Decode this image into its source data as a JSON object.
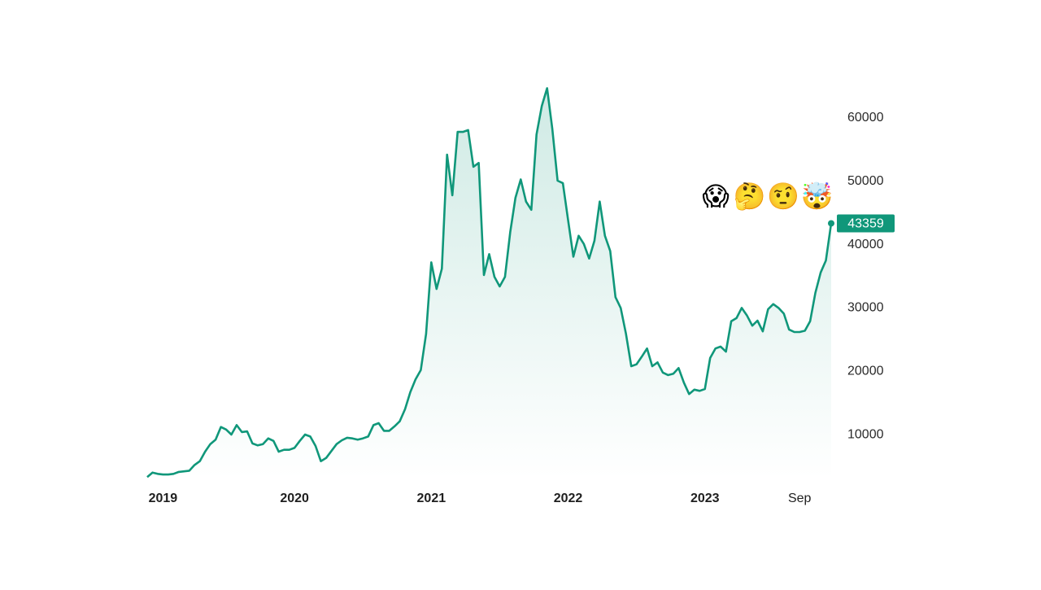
{
  "chart_data": {
    "type": "area-line",
    "categories": [
      null,
      null,
      null,
      "2019",
      null,
      null,
      null,
      null,
      null,
      null,
      null,
      null,
      null,
      null,
      null,
      null,
      null,
      null,
      null,
      null,
      null,
      null,
      null,
      null,
      null,
      null,
      null,
      null,
      "2020",
      null,
      null,
      null,
      null,
      null,
      null,
      null,
      null,
      null,
      null,
      null,
      null,
      null,
      null,
      null,
      null,
      null,
      null,
      null,
      null,
      null,
      null,
      null,
      null,
      null,
      "2021",
      null,
      null,
      null,
      null,
      null,
      null,
      null,
      null,
      null,
      null,
      null,
      null,
      null,
      null,
      null,
      null,
      null,
      null,
      null,
      null,
      null,
      null,
      null,
      null,
      null,
      "2022",
      null,
      null,
      null,
      null,
      null,
      null,
      null,
      null,
      null,
      null,
      null,
      null,
      null,
      null,
      null,
      null,
      null,
      null,
      null,
      null,
      null,
      null,
      null,
      null,
      null,
      "2023",
      null,
      null,
      null,
      null,
      null,
      null,
      null,
      null,
      null,
      null,
      null,
      null,
      null,
      null,
      null,
      null,
      null,
      "Sep",
      null,
      null,
      null,
      null,
      null,
      null
    ],
    "values": [
      3300,
      4000,
      3800,
      3700,
      3700,
      3800,
      4100,
      4200,
      4300,
      5200,
      5800,
      7300,
      8500,
      9200,
      11200,
      10800,
      10000,
      11500,
      10400,
      10500,
      8600,
      8300,
      8500,
      9400,
      9000,
      7300,
      7600,
      7600,
      7900,
      9000,
      10000,
      9700,
      8200,
      5800,
      6300,
      7400,
      8500,
      9100,
      9500,
      9400,
      9200,
      9400,
      9700,
      11500,
      11800,
      10600,
      10600,
      11300,
      12100,
      14000,
      16700,
      18700,
      20200,
      25900,
      37200,
      33000,
      36200,
      54200,
      47800,
      57800,
      57800,
      58100,
      52300,
      52900,
      35200,
      38500,
      34900,
      33400,
      34900,
      42000,
      47400,
      50300,
      46800,
      45500,
      57400,
      61900,
      64700,
      58300,
      50100,
      49700,
      43900,
      38100,
      41400,
      40100,
      37800,
      40600,
      46800,
      41400,
      39000,
      31700,
      30000,
      25900,
      20800,
      21100,
      22300,
      23600,
      20800,
      21400,
      19800,
      19400,
      19600,
      20500,
      18200,
      16400,
      17100,
      16900,
      17200,
      22100,
      23600,
      23900,
      23100,
      27900,
      28400,
      30000,
      28800,
      27200,
      28000,
      26300,
      29800,
      30600,
      30000,
      29100,
      26600,
      26200,
      26200,
      26400,
      27900,
      32400,
      35600,
      37500,
      43359
    ],
    "color": "#10977a",
    "ylim": [
      3000,
      66000
    ],
    "yticks": [
      10000,
      20000,
      30000,
      40000,
      50000,
      60000
    ],
    "grid": false,
    "annotations": [
      "😱",
      "🤔",
      "🤨",
      "🤯"
    ]
  }
}
